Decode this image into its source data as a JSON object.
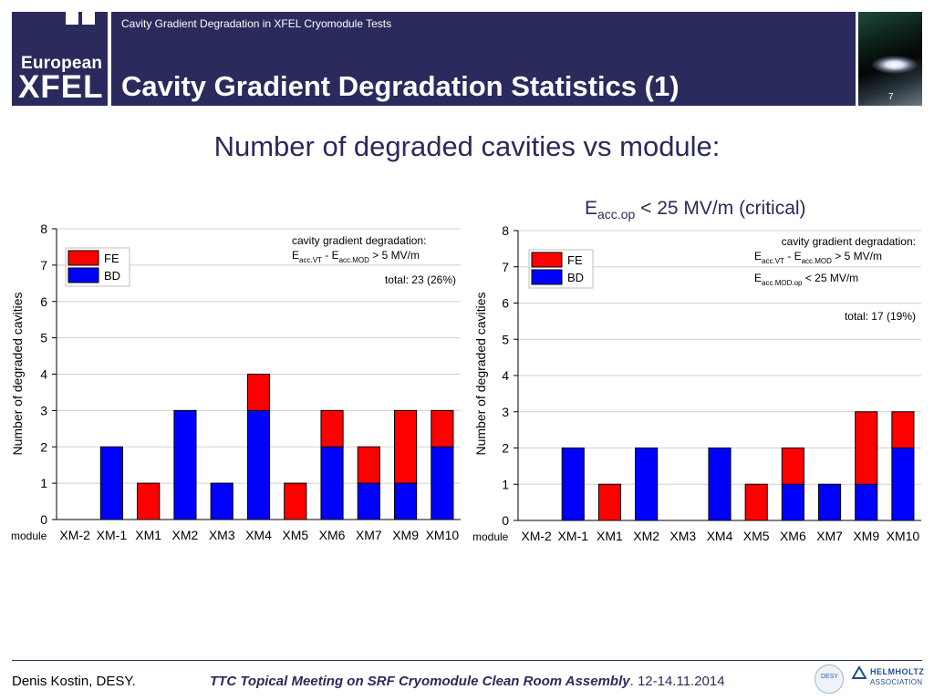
{
  "header": {
    "subtitle": "Cavity Gradient Degradation in XFEL Cryomodule Tests",
    "title": "Cavity Gradient Degradation Statistics (1)",
    "page_number": "7",
    "logo_top": "European",
    "logo_bottom": "XFEL"
  },
  "main": {
    "heading": "Number of degraded cavities vs module:",
    "critical_label": {
      "prefix": "E",
      "sub": "acc.op",
      "suffix": "< 25 MV/m (critical)"
    }
  },
  "chart_data": [
    {
      "type": "bar",
      "stacked": true,
      "ylabel": "Number of degraded cavities",
      "xlabel": "module",
      "ylim": [
        0,
        8
      ],
      "yticks": [
        0,
        1,
        2,
        3,
        4,
        5,
        6,
        7,
        8
      ],
      "categories": [
        "XM-2",
        "XM-1",
        "XM1",
        "XM2",
        "XM3",
        "XM4",
        "XM5",
        "XM6",
        "XM7",
        "XM9",
        "XM10"
      ],
      "series": [
        {
          "name": "BD",
          "color": "#0000ff",
          "values": [
            0,
            2,
            0,
            3,
            1,
            3,
            0,
            2,
            1,
            1,
            2
          ]
        },
        {
          "name": "FE",
          "color": "#ff0000",
          "values": [
            0,
            0,
            1,
            0,
            0,
            1,
            1,
            1,
            1,
            2,
            1
          ]
        }
      ],
      "legend": [
        "FE",
        "BD"
      ],
      "annotation": {
        "line1": "cavity gradient degradation:",
        "cond1_a": "E",
        "cond1_a_sub": "acc.VT",
        "cond1_b": " - E",
        "cond1_b_sub": "acc.MOD",
        "cond1_c": " > 5 MV/m",
        "total": "total: 23 (26%)"
      }
    },
    {
      "type": "bar",
      "stacked": true,
      "ylabel": "Number of degraded cavities",
      "xlabel": "module",
      "ylim": [
        0,
        8
      ],
      "yticks": [
        0,
        1,
        2,
        3,
        4,
        5,
        6,
        7,
        8
      ],
      "categories": [
        "XM-2",
        "XM-1",
        "XM1",
        "XM2",
        "XM3",
        "XM4",
        "XM5",
        "XM6",
        "XM7",
        "XM9",
        "XM10"
      ],
      "series": [
        {
          "name": "BD",
          "color": "#0000ff",
          "values": [
            0,
            2,
            0,
            2,
            0,
            2,
            0,
            1,
            1,
            1,
            2
          ]
        },
        {
          "name": "FE",
          "color": "#ff0000",
          "values": [
            0,
            0,
            1,
            0,
            0,
            0,
            1,
            1,
            0,
            2,
            1
          ]
        }
      ],
      "legend": [
        "FE",
        "BD"
      ],
      "annotation": {
        "line1": "cavity gradient degradation:",
        "cond1_a": "E",
        "cond1_a_sub": "acc.VT",
        "cond1_b": " - E",
        "cond1_b_sub": "acc.MOD",
        "cond1_c": " > 5 MV/m",
        "cond2_a": "E",
        "cond2_a_sub": "acc.MOD.op",
        "cond2_c": " < 25 MV/m",
        "total": "total: 17 (19%)"
      }
    }
  ],
  "footer": {
    "author": "Denis Kostin, DESY.",
    "meeting": "TTC Topical Meeting on SRF Cryomodule Clean Room Assembly",
    "date": ". 12-14.11.2014",
    "desy_logo": "DESY",
    "helmholtz_line1": "HELMHOLTZ",
    "helmholtz_line2": "ASSOCIATION"
  },
  "colors": {
    "brand": "#2b2a5c",
    "fe": "#ff0000",
    "bd": "#0000ff"
  }
}
